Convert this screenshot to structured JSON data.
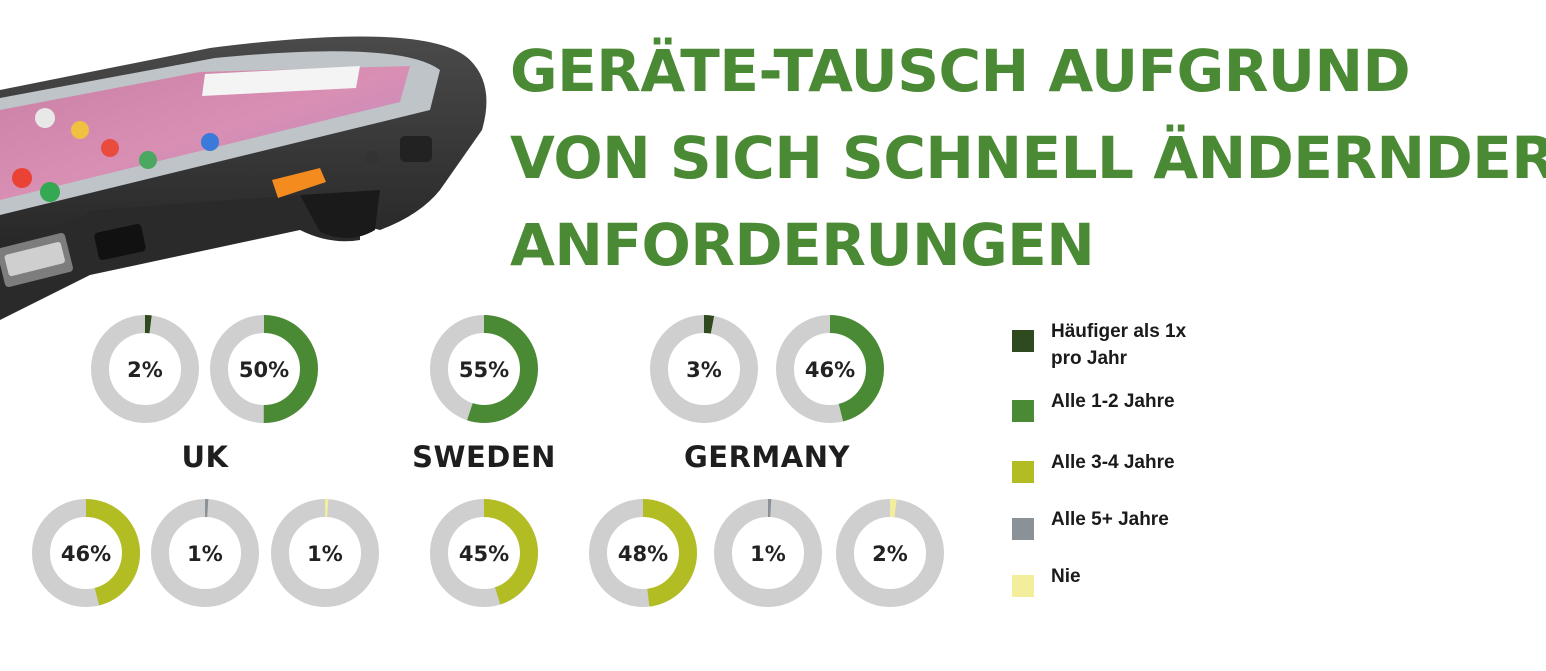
{
  "title": {
    "line1": "GERÄTE-TAUSCH AUFGRUND",
    "line2": "VON SICH SCHNELL ÄNDERNDER",
    "line3": "ANFORDERUNGEN"
  },
  "colors": {
    "track": "#cfcfcf",
    "haeufiger": "#2f4a1e",
    "alle12": "#4b8a35",
    "alle34": "#b2bd24",
    "alle5": "#8a9297",
    "nie": "#f3ee9c"
  },
  "legend": [
    {
      "label": "Häufiger als 1x pro Jahr",
      "color_key": "haeufiger"
    },
    {
      "label": "Alle 1-2 Jahre",
      "color_key": "alle12"
    },
    {
      "label": "Alle 3-4 Jahre",
      "color_key": "alle34"
    },
    {
      "label": "Alle 5+ Jahre",
      "color_key": "alle5"
    },
    {
      "label": "Nie",
      "color_key": "nie"
    }
  ],
  "chart_data": {
    "type": "donut",
    "countries": [
      {
        "name": "UK",
        "values": [
          {
            "category": "Häufiger als 1x pro Jahr",
            "value": 2,
            "label": "2%",
            "color_key": "haeufiger"
          },
          {
            "category": "Alle 1-2 Jahre",
            "value": 50,
            "label": "50%",
            "color_key": "alle12"
          },
          {
            "category": "Alle 3-4 Jahre",
            "value": 46,
            "label": "46%",
            "color_key": "alle34"
          },
          {
            "category": "Alle 5+ Jahre",
            "value": 1,
            "label": "1%",
            "color_key": "alle5"
          },
          {
            "category": "Nie",
            "value": 1,
            "label": "1%",
            "color_key": "nie"
          }
        ]
      },
      {
        "name": "SWEDEN",
        "values": [
          {
            "category": "Alle 1-2 Jahre",
            "value": 55,
            "label": "55%",
            "color_key": "alle12"
          },
          {
            "category": "Alle 3-4 Jahre",
            "value": 45,
            "label": "45%",
            "color_key": "alle34"
          }
        ]
      },
      {
        "name": "GERMANY",
        "values": [
          {
            "category": "Häufiger als 1x pro Jahr",
            "value": 3,
            "label": "3%",
            "color_key": "haeufiger"
          },
          {
            "category": "Alle 1-2 Jahre",
            "value": 46,
            "label": "46%",
            "color_key": "alle12"
          },
          {
            "category": "Alle 3-4 Jahre",
            "value": 48,
            "label": "48%",
            "color_key": "alle34"
          },
          {
            "category": "Alle 5+ Jahre",
            "value": 1,
            "label": "1%",
            "color_key": "alle5"
          },
          {
            "category": "Nie",
            "value": 2,
            "label": "2%",
            "color_key": "nie"
          }
        ]
      }
    ]
  }
}
